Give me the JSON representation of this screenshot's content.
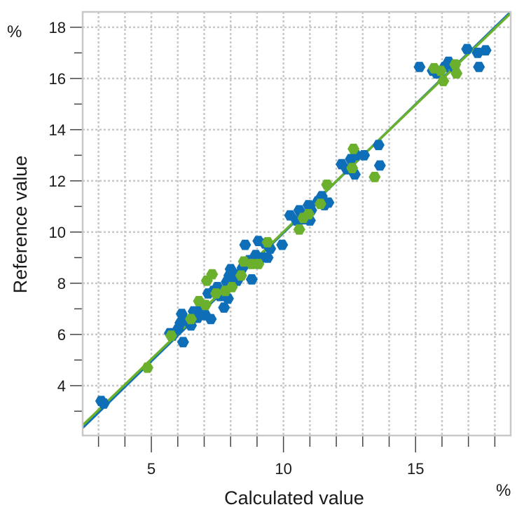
{
  "chart_data": {
    "type": "scatter",
    "title": "",
    "xlabel": "Calculated value",
    "ylabel": "Reference value",
    "x_unit": "%",
    "y_unit": "%",
    "xlim": [
      2.4,
      18.6
    ],
    "ylim": [
      2.05,
      18.6
    ],
    "x_ticks": [
      5,
      10,
      15
    ],
    "y_ticks": [
      4,
      6,
      8,
      10,
      12,
      14,
      16,
      18
    ],
    "x_minor_ticks": [
      3,
      4,
      5,
      6,
      7,
      8,
      9,
      10,
      11,
      12,
      13,
      14,
      15,
      16,
      17,
      18
    ],
    "y_minor_ticks": [
      3,
      4,
      5,
      6,
      7,
      8,
      9,
      10,
      11,
      12,
      13,
      14,
      15,
      16,
      17,
      18
    ],
    "grid": true,
    "series": [
      {
        "color": "#0e6fb8",
        "line": [
          [
            2.4,
            2.35
          ],
          [
            18.6,
            18.6
          ]
        ],
        "points": [
          [
            3.1,
            3.4
          ],
          [
            3.2,
            3.3
          ],
          [
            5.7,
            6.05
          ],
          [
            5.8,
            5.95
          ],
          [
            6.0,
            6.2
          ],
          [
            6.1,
            6.45
          ],
          [
            6.15,
            6.8
          ],
          [
            6.2,
            5.7
          ],
          [
            6.3,
            6.55
          ],
          [
            6.5,
            6.35
          ],
          [
            6.6,
            6.9
          ],
          [
            6.75,
            6.65
          ],
          [
            6.85,
            6.95
          ],
          [
            7.0,
            7.1
          ],
          [
            7.05,
            6.75
          ],
          [
            7.15,
            7.6
          ],
          [
            7.25,
            6.6
          ],
          [
            7.35,
            7.7
          ],
          [
            7.5,
            7.85
          ],
          [
            7.6,
            7.5
          ],
          [
            7.75,
            7.05
          ],
          [
            7.85,
            8.05
          ],
          [
            7.9,
            7.4
          ],
          [
            7.95,
            8.3
          ],
          [
            8.0,
            8.55
          ],
          [
            8.2,
            8.35
          ],
          [
            8.25,
            8.1
          ],
          [
            8.45,
            8.6
          ],
          [
            8.55,
            9.5
          ],
          [
            8.7,
            8.9
          ],
          [
            8.8,
            8.15
          ],
          [
            8.95,
            9.1
          ],
          [
            9.05,
            9.65
          ],
          [
            9.15,
            9.0
          ],
          [
            9.3,
            9.55
          ],
          [
            9.4,
            9.0
          ],
          [
            9.5,
            9.35
          ],
          [
            9.95,
            9.5
          ],
          [
            10.25,
            10.65
          ],
          [
            10.5,
            10.45
          ],
          [
            10.6,
            10.85
          ],
          [
            10.75,
            10.5
          ],
          [
            10.95,
            11.05
          ],
          [
            11.0,
            10.45
          ],
          [
            11.05,
            10.85
          ],
          [
            11.3,
            11.2
          ],
          [
            11.45,
            11.4
          ],
          [
            11.55,
            11.05
          ],
          [
            11.7,
            11.15
          ],
          [
            12.2,
            12.65
          ],
          [
            12.4,
            12.45
          ],
          [
            12.55,
            12.85
          ],
          [
            12.7,
            12.25
          ],
          [
            12.75,
            13.0
          ],
          [
            13.05,
            13.0
          ],
          [
            13.6,
            13.4
          ],
          [
            13.65,
            12.6
          ],
          [
            15.15,
            16.45
          ],
          [
            15.65,
            16.3
          ],
          [
            15.8,
            16.2
          ],
          [
            16.1,
            16.45
          ],
          [
            16.25,
            16.65
          ],
          [
            16.45,
            16.45
          ],
          [
            16.95,
            17.15
          ],
          [
            17.35,
            17.0
          ],
          [
            17.4,
            16.45
          ],
          [
            17.65,
            17.1
          ]
        ]
      },
      {
        "color": "#6ab02d",
        "line": [
          [
            2.4,
            2.45
          ],
          [
            18.6,
            18.55
          ]
        ],
        "points": [
          [
            4.85,
            4.7
          ],
          [
            5.75,
            5.95
          ],
          [
            6.5,
            6.6
          ],
          [
            6.8,
            7.3
          ],
          [
            7.05,
            7.15
          ],
          [
            7.1,
            8.1
          ],
          [
            7.3,
            8.35
          ],
          [
            7.45,
            7.6
          ],
          [
            7.8,
            7.7
          ],
          [
            8.05,
            7.85
          ],
          [
            8.4,
            8.3
          ],
          [
            8.5,
            8.85
          ],
          [
            8.8,
            8.75
          ],
          [
            9.05,
            8.75
          ],
          [
            9.4,
            9.6
          ],
          [
            10.6,
            10.1
          ],
          [
            10.75,
            10.55
          ],
          [
            10.95,
            10.7
          ],
          [
            11.4,
            11.1
          ],
          [
            11.65,
            11.85
          ],
          [
            12.6,
            12.5
          ],
          [
            12.65,
            13.25
          ],
          [
            13.45,
            12.15
          ],
          [
            15.7,
            16.4
          ],
          [
            15.95,
            16.3
          ],
          [
            16.05,
            15.9
          ],
          [
            16.5,
            16.55
          ],
          [
            16.55,
            16.2
          ]
        ]
      }
    ]
  }
}
